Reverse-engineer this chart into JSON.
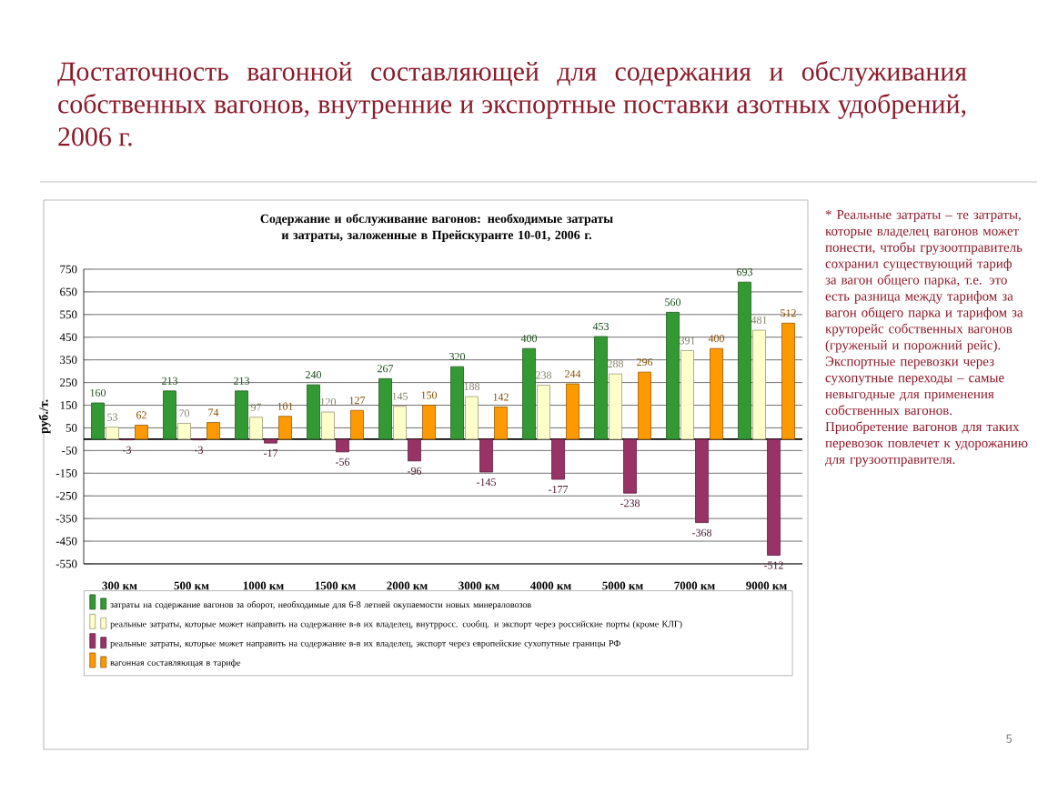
{
  "chart_data": {
    "type": "bar",
    "title": "Достаточность вагонной составляющей для содержания и обслуживания собственных вагонов, внутренние и экспортные поставки азотных удобрений, 2006 г.",
    "subtitle": "Содержание и обслуживание вагонов: необходимые затраты и затраты, заложенные в Прейскуранте 10-01, 2006 г.",
    "ylabel": "руб./т.",
    "categories": [
      "300 км",
      "500 км",
      "1000 км",
      "1500 км",
      "2000 км",
      "3000 км",
      "4000 км",
      "5000 км",
      "7000 км",
      "9000 км"
    ],
    "series": [
      {
        "name": "затраты на содержание вагонов за оборот, необходимые для 6-8 летней окупаемости новых минераловозов",
        "color": "#339933",
        "values": [
          160,
          213,
          213,
          240,
          267,
          320,
          400,
          453,
          560,
          693
        ]
      },
      {
        "name": "реальные затраты, которые может направить на содержание в-в их владелец, внутрросс. сообщ. и экспорт через российские порты (кроме КЛГ)",
        "color": "#ffffcc",
        "values": [
          53,
          70,
          97,
          120,
          145,
          188,
          238,
          288,
          391,
          481
        ]
      },
      {
        "name": "реальные затраты, которые может направить на содержание в-в их владелец, экспорт через европейские сухопутные границы РФ",
        "color": "#993366",
        "values": [
          -3,
          -3,
          -17,
          -56,
          -96,
          -145,
          -177,
          -238,
          -368,
          -512
        ]
      },
      {
        "name": "вагонная составляющая в тарифе",
        "color": "#ff9900",
        "values": [
          62,
          74,
          101,
          127,
          150,
          142,
          244,
          296,
          400,
          512
        ]
      }
    ],
    "ylim": [
      -550,
      750
    ],
    "yticks": [
      -550,
      -450,
      -350,
      -250,
      -150,
      -50,
      50,
      150,
      250,
      350,
      450,
      550,
      650,
      750
    ],
    "grid": "y",
    "legend": "bottom",
    "data_labels": true,
    "annotations": [
      "* Реальные затраты – те затраты, которые владелец вагонов может понести, чтобы грузоотправитель сохранил существующий тариф за вагон общего парка, т.е. это есть разница между тарифом за вагон общего парка и тарифом за круторейс собственных вагонов (груженый и порожний рейс).",
      "Экспортные перевозки через сухопутные переходы – самые невыгодные для применения собственных вагонов.",
      "Приобретение вагонов для таких перевозок повлечет к удорожанию для грузоотправителя.",
      "5"
    ]
  }
}
